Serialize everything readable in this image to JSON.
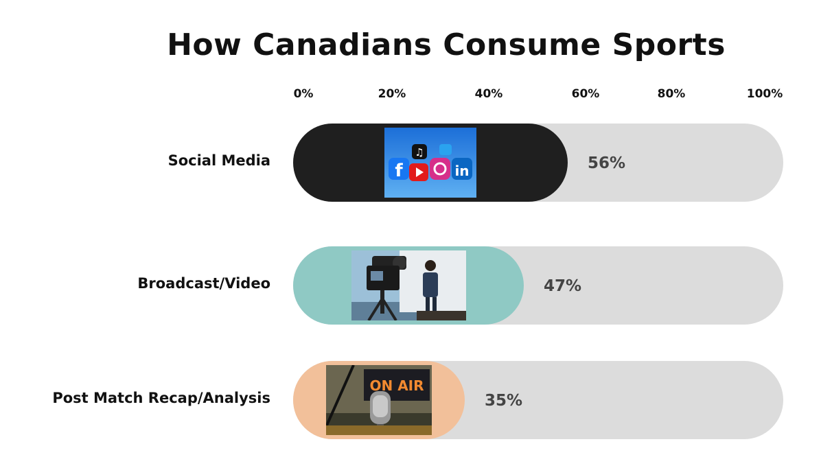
{
  "chart_data": {
    "type": "bar",
    "orientation": "horizontal",
    "title": "How Canadians Consume Sports",
    "xlabel": "",
    "ylabel": "",
    "xlim": [
      0,
      100
    ],
    "ticks": [
      "0%",
      "20%",
      "40%",
      "60%",
      "80%",
      "100%"
    ],
    "categories": [
      "Social Media",
      "Broadcast/Video",
      "Post Match Recap/Analysis"
    ],
    "values": [
      56,
      47,
      35
    ],
    "value_labels": [
      "56%",
      "47%",
      "35%"
    ],
    "grid": false,
    "legend": "none",
    "colors": [
      "#1f1f1f",
      "#8fc9c4",
      "#f2c09a"
    ],
    "track_color": "#dcdcdc",
    "images": [
      "social-media-logos-photo",
      "video-camera-presenter-photo",
      "on-air-microphone-photo"
    ],
    "image_text": [
      "",
      "",
      "ON AIR"
    ]
  }
}
